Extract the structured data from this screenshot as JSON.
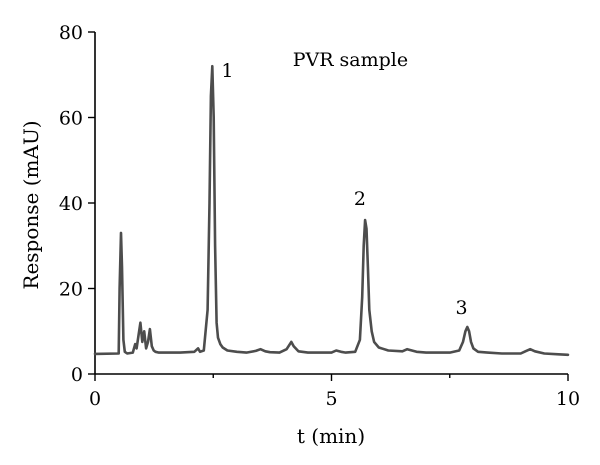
{
  "chart_data": {
    "type": "line",
    "xlabel": "t (min)",
    "ylabel": "Response (mAU)",
    "xlim": [
      0,
      10
    ],
    "ylim": [
      0,
      80
    ],
    "x_ticks": [
      0,
      5,
      10
    ],
    "y_ticks": [
      0,
      20,
      40,
      60,
      80
    ],
    "grid": false,
    "line_color": "#4d4d4d",
    "series": [
      {
        "x": [
          0.0,
          0.5,
          0.52,
          0.55,
          0.57,
          0.6,
          0.63,
          0.68,
          0.8,
          0.85,
          0.88,
          0.92,
          0.96,
          1.0,
          1.04,
          1.08,
          1.12,
          1.16,
          1.2,
          1.24,
          1.28,
          1.35,
          1.5,
          1.8,
          2.1,
          2.18,
          2.22,
          2.3,
          2.38,
          2.42,
          2.45,
          2.48,
          2.51,
          2.54,
          2.57,
          2.6,
          2.65,
          2.7,
          2.8,
          3.0,
          3.2,
          3.4,
          3.5,
          3.6,
          3.7,
          3.9,
          4.05,
          4.15,
          4.2,
          4.3,
          4.5,
          5.0,
          5.1,
          5.2,
          5.3,
          5.5,
          5.6,
          5.65,
          5.68,
          5.71,
          5.74,
          5.77,
          5.8,
          5.85,
          5.9,
          6.0,
          6.2,
          6.5,
          6.6,
          6.7,
          6.8,
          7.0,
          7.5,
          7.7,
          7.78,
          7.83,
          7.87,
          7.91,
          7.95,
          8.0,
          8.1,
          8.3,
          8.6,
          9.0,
          9.1,
          9.2,
          9.3,
          9.5,
          9.8,
          10.0
        ],
        "y": [
          4.7,
          4.8,
          20,
          33,
          25,
          8,
          5.2,
          4.8,
          5.0,
          7.0,
          6.0,
          9.0,
          12,
          7.5,
          10,
          6.0,
          7.5,
          10.5,
          6.5,
          5.5,
          5.2,
          5.0,
          5.0,
          5.0,
          5.2,
          6.0,
          5.2,
          5.5,
          15,
          40,
          65,
          72,
          60,
          30,
          12,
          8.5,
          7.0,
          6.2,
          5.5,
          5.2,
          5.0,
          5.4,
          5.8,
          5.3,
          5.1,
          5.0,
          5.8,
          7.5,
          6.5,
          5.3,
          5.0,
          5.0,
          5.5,
          5.2,
          5.0,
          5.2,
          8,
          18,
          30,
          36,
          34,
          25,
          15,
          10,
          7.5,
          6.2,
          5.5,
          5.3,
          5.8,
          5.5,
          5.2,
          5.0,
          5.0,
          5.5,
          7.5,
          10,
          11,
          10,
          7.5,
          6,
          5.2,
          5.0,
          4.8,
          4.8,
          5.3,
          5.8,
          5.3,
          4.8,
          4.6,
          4.5
        ]
      }
    ],
    "annotations": [
      {
        "text": "PVR sample",
        "x": 5.4,
        "y": 72
      },
      {
        "text": "1",
        "x": 2.8,
        "y": 69.5
      },
      {
        "text": "2",
        "x": 5.6,
        "y": 39.5
      },
      {
        "text": "3",
        "x": 7.75,
        "y": 14
      }
    ]
  }
}
